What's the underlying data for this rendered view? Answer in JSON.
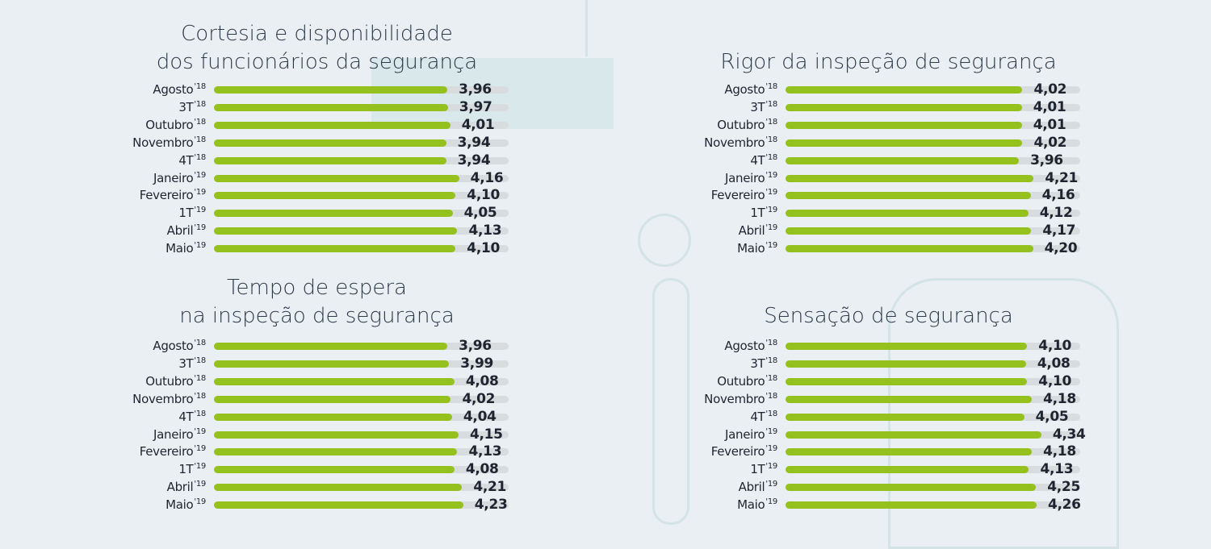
{
  "chart_data": [
    {
      "type": "bar",
      "orientation": "horizontal",
      "title_lines": [
        "Cortesia e disponibilidade",
        "dos funcionários da segurança"
      ],
      "categories": [
        {
          "name": "Agosto",
          "sup": "'18"
        },
        {
          "name": "3T",
          "sup": "'18"
        },
        {
          "name": "Outubro",
          "sup": "'18"
        },
        {
          "name": "Novembro",
          "sup": "'18"
        },
        {
          "name": "4T",
          "sup": "'18"
        },
        {
          "name": "Janeiro",
          "sup": "'19"
        },
        {
          "name": "Fevereiro",
          "sup": "'19"
        },
        {
          "name": "1T",
          "sup": "'19"
        },
        {
          "name": "Abril",
          "sup": "'19"
        },
        {
          "name": "Maio",
          "sup": "'19"
        }
      ],
      "values": [
        3.96,
        3.97,
        4.01,
        3.94,
        3.94,
        4.16,
        4.1,
        4.05,
        4.13,
        4.1
      ],
      "xlim": [
        0,
        5
      ]
    },
    {
      "type": "bar",
      "orientation": "horizontal",
      "title_lines": [
        "Rigor da inspeção de segurança"
      ],
      "categories": [
        {
          "name": "Agosto",
          "sup": "'18"
        },
        {
          "name": "3T",
          "sup": "'18"
        },
        {
          "name": "Outubro",
          "sup": "'18"
        },
        {
          "name": "Novembro",
          "sup": "'18"
        },
        {
          "name": "4T",
          "sup": "'18"
        },
        {
          "name": "Janeiro",
          "sup": "'19"
        },
        {
          "name": "Fevereiro",
          "sup": "'19"
        },
        {
          "name": "1T",
          "sup": "'19"
        },
        {
          "name": "Abril",
          "sup": "'19"
        },
        {
          "name": "Maio",
          "sup": "'19"
        }
      ],
      "values": [
        4.02,
        4.01,
        4.01,
        4.02,
        3.96,
        4.21,
        4.16,
        4.12,
        4.17,
        4.2
      ],
      "xlim": [
        0,
        5
      ]
    },
    {
      "type": "bar",
      "orientation": "horizontal",
      "title_lines": [
        "Tempo de espera",
        "na inspeção de segurança"
      ],
      "categories": [
        {
          "name": "Agosto",
          "sup": "'18"
        },
        {
          "name": "3T",
          "sup": "'18"
        },
        {
          "name": "Outubro",
          "sup": "'18"
        },
        {
          "name": "Novembro",
          "sup": "'18"
        },
        {
          "name": "4T",
          "sup": "'18"
        },
        {
          "name": "Janeiro",
          "sup": "'19"
        },
        {
          "name": "Fevereiro",
          "sup": "'19"
        },
        {
          "name": "1T",
          "sup": "'19"
        },
        {
          "name": "Abril",
          "sup": "'19"
        },
        {
          "name": "Maio",
          "sup": "'19"
        }
      ],
      "values": [
        3.96,
        3.99,
        4.08,
        4.02,
        4.04,
        4.15,
        4.13,
        4.08,
        4.21,
        4.23
      ],
      "xlim": [
        0,
        5
      ]
    },
    {
      "type": "bar",
      "orientation": "horizontal",
      "title_lines": [
        "Sensação de segurança"
      ],
      "categories": [
        {
          "name": "Agosto",
          "sup": "'18"
        },
        {
          "name": "3T",
          "sup": "'18"
        },
        {
          "name": "Outubro",
          "sup": "'18"
        },
        {
          "name": "Novembro",
          "sup": "'18"
        },
        {
          "name": "4T",
          "sup": "'18"
        },
        {
          "name": "Janeiro",
          "sup": "'19"
        },
        {
          "name": "Fevereiro",
          "sup": "'19"
        },
        {
          "name": "1T",
          "sup": "'19"
        },
        {
          "name": "Abril",
          "sup": "'19"
        },
        {
          "name": "Maio",
          "sup": "'19"
        }
      ],
      "values": [
        4.1,
        4.08,
        4.1,
        4.18,
        4.05,
        4.34,
        4.18,
        4.13,
        4.25,
        4.26
      ],
      "xlim": [
        0,
        5
      ]
    }
  ],
  "colors": {
    "bar": "#95c11f",
    "track": "#d9dcde",
    "background": "#e9eff3",
    "text": "#1e2530"
  }
}
